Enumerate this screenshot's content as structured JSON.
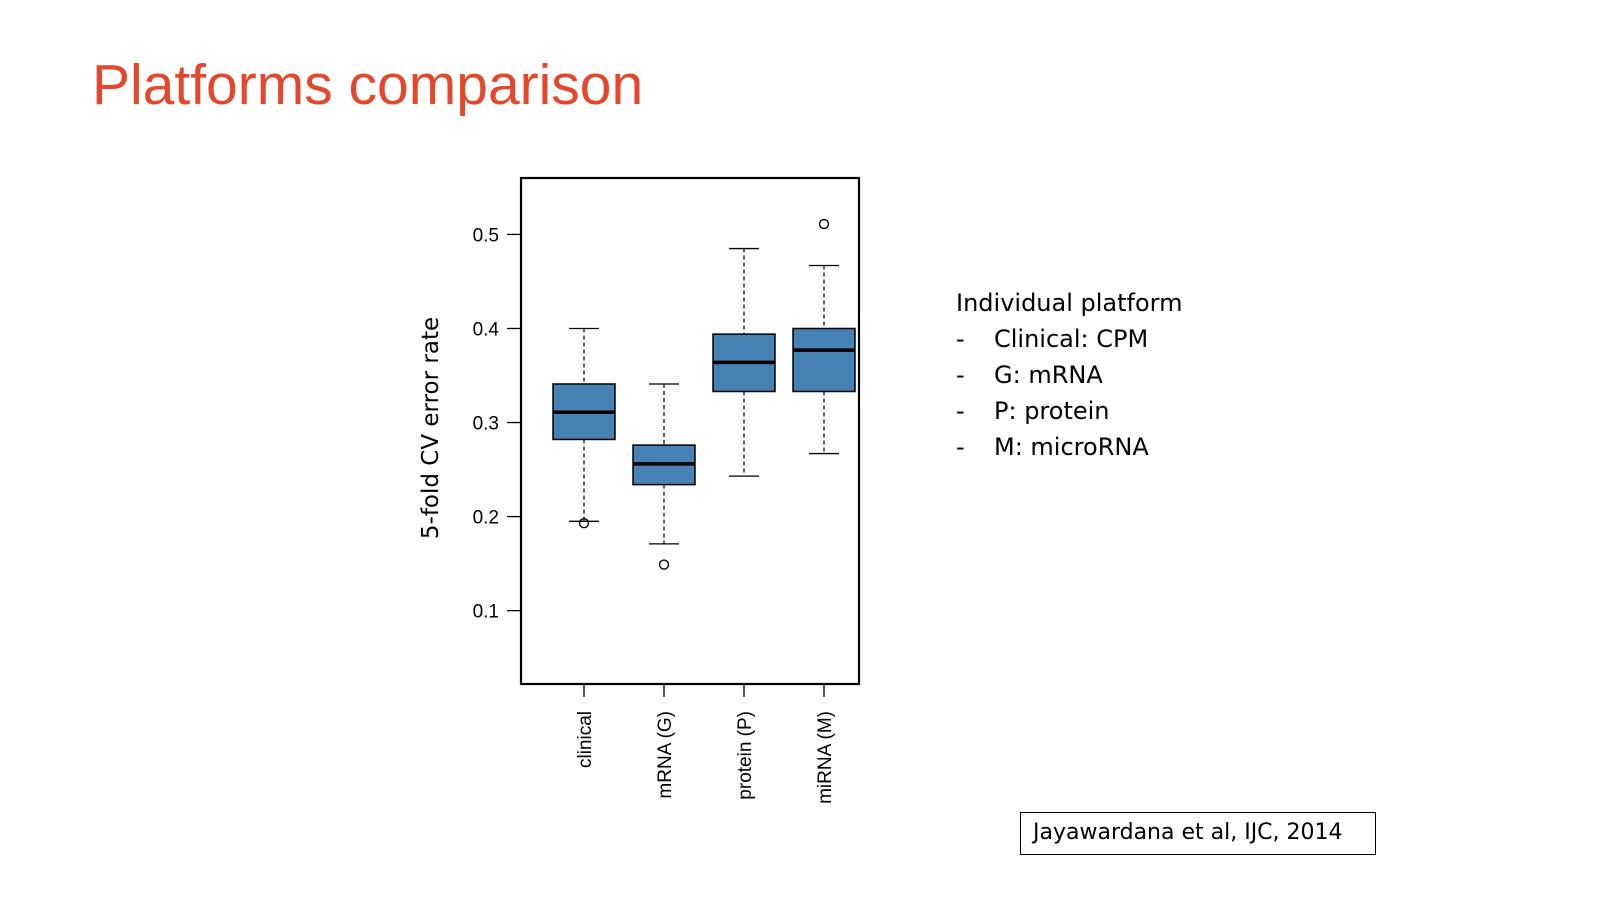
{
  "slide": {
    "title": "Platforms comparison"
  },
  "legend": {
    "heading": "Individual platform",
    "items": [
      {
        "dash": "-",
        "text": "Clinical: CPM"
      },
      {
        "dash": "-",
        "text": "G: mRNA"
      },
      {
        "dash": "-",
        "text": "P: protein"
      },
      {
        "dash": "-",
        "text": "M: microRNA"
      }
    ]
  },
  "citation": "Jayawardana et al, IJC, 2014",
  "colors": {
    "title": "#e4482c",
    "box_fill": "#4682b4"
  },
  "chart_data": {
    "type": "boxplot",
    "title": "",
    "xlabel": "",
    "ylabel": "5-fold CV error rate",
    "ylim": [
      0.022,
      0.56
    ],
    "yticks": [
      "0.1",
      "0.2",
      "0.3",
      "0.4",
      "0.5"
    ],
    "grid": false,
    "categories": [
      "clinical",
      "mRNA (G)",
      "protein (P)",
      "miRNA (M)"
    ],
    "boxes": [
      {
        "whisker_low": 0.195,
        "q1": 0.282,
        "median": 0.311,
        "q3": 0.341,
        "whisker_high": 0.4,
        "outliers": [
          0.193
        ]
      },
      {
        "whisker_low": 0.171,
        "q1": 0.234,
        "median": 0.256,
        "q3": 0.276,
        "whisker_high": 0.341,
        "outliers": [
          0.149
        ]
      },
      {
        "whisker_low": 0.243,
        "q1": 0.333,
        "median": 0.364,
        "q3": 0.394,
        "whisker_high": 0.485,
        "outliers": []
      },
      {
        "whisker_low": 0.267,
        "q1": 0.333,
        "median": 0.377,
        "q3": 0.4,
        "whisker_high": 0.467,
        "outliers": [
          0.511
        ]
      }
    ]
  }
}
